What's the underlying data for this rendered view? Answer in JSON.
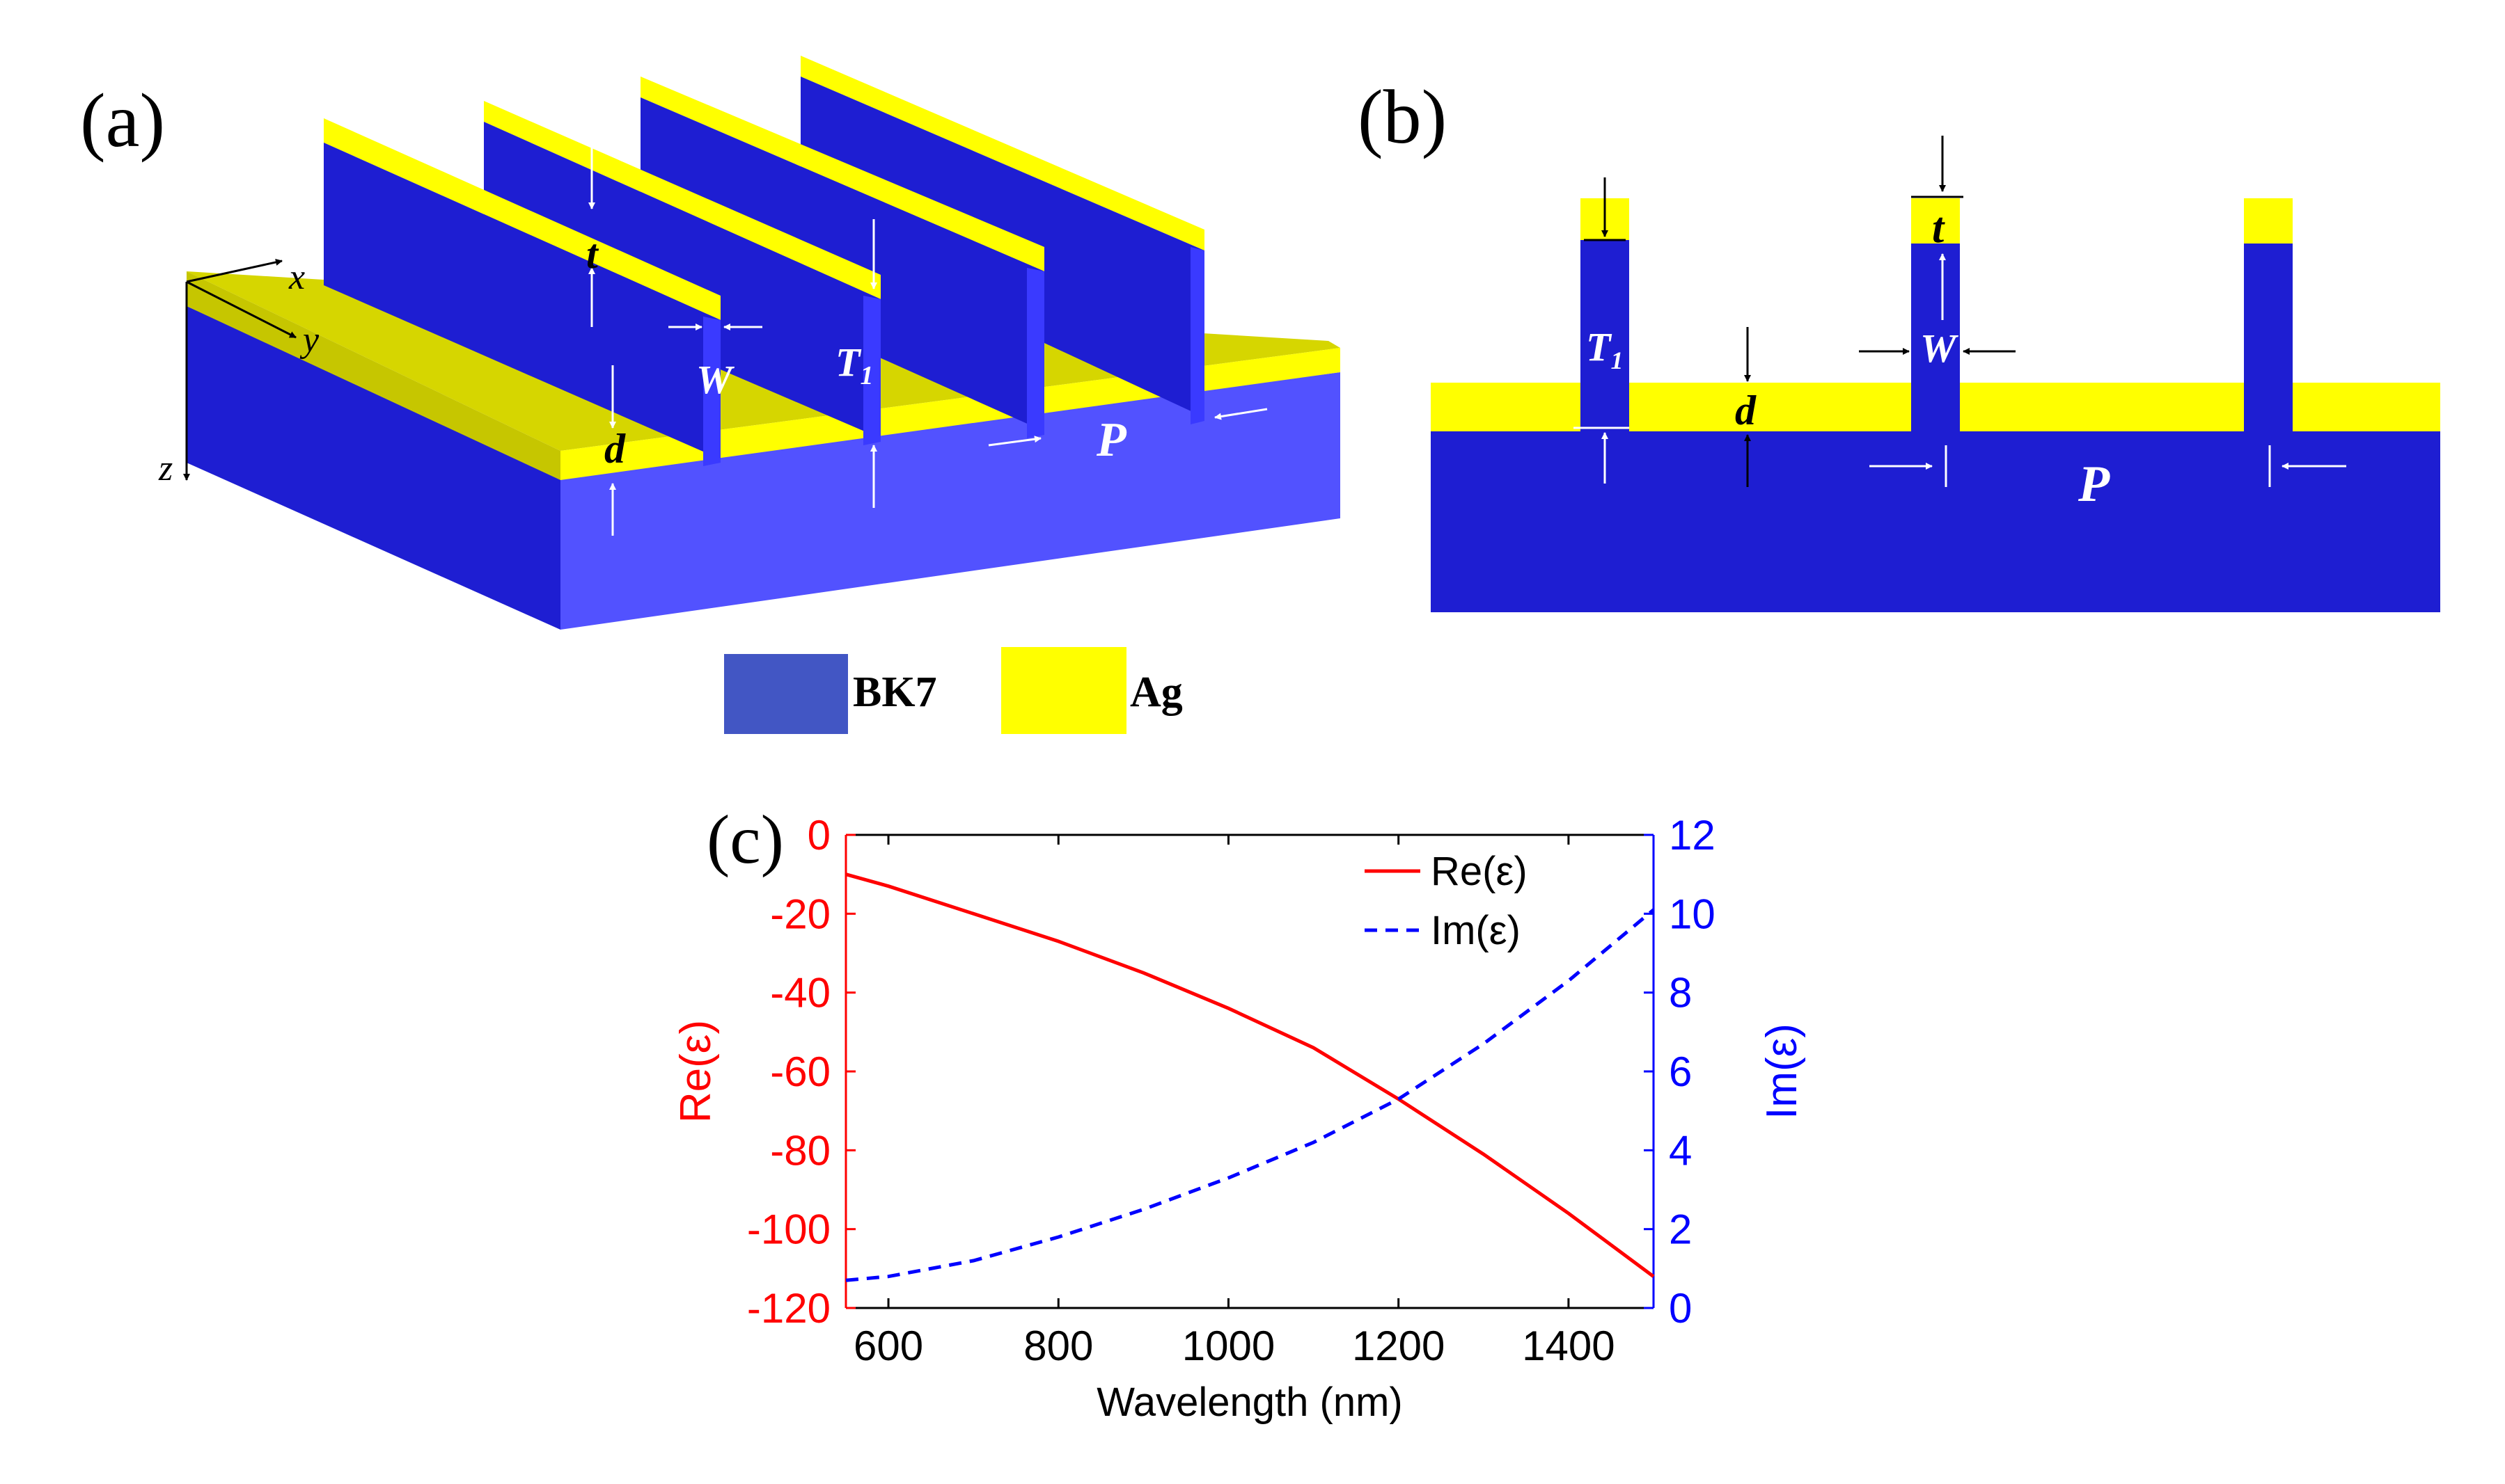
{
  "panels": {
    "a": {
      "label": "(a)"
    },
    "b": {
      "label": "(b)"
    },
    "c": {
      "label": "(c)"
    }
  },
  "symbols": {
    "t": "t",
    "T1": "T",
    "T1_sub": "1",
    "W": "W",
    "d": "d",
    "P": "P",
    "x": "x",
    "y": "y",
    "z": "z"
  },
  "legend": {
    "materials": [
      {
        "name": "BK7",
        "color": "#4256c4"
      },
      {
        "name": "Ag",
        "color": "#ffff00"
      }
    ]
  },
  "colors": {
    "substrate_top": "#5252ff",
    "substrate_side": "#1e1ed2",
    "ag_top": "#d6d600",
    "ag_front": "#ffff00",
    "red": "#ff0000",
    "blue": "#0000ff"
  },
  "chart_data": {
    "type": "line",
    "xlabel": "Wavelength (nm)",
    "ylabel_left": "Re(ε)",
    "ylabel_right": "Im(ε)",
    "xlim": [
      550,
      1500
    ],
    "ylim_left": [
      -120,
      0
    ],
    "ylim_right": [
      0,
      12
    ],
    "xticks": [
      600,
      800,
      1000,
      1200,
      1400
    ],
    "yticks_left": [
      0,
      -20,
      -40,
      -60,
      -80,
      -100,
      -120
    ],
    "yticks_right": [
      12,
      10,
      8,
      6,
      4,
      2,
      0
    ],
    "series": [
      {
        "name": "Re(ε)",
        "axis": "left",
        "style": "solid",
        "color": "#ff0000",
        "x": [
          550,
          600,
          700,
          800,
          900,
          1000,
          1100,
          1200,
          1300,
          1400,
          1500
        ],
        "y": [
          -10,
          -13,
          -20,
          -27,
          -35,
          -44,
          -54,
          -67,
          -81,
          -96,
          -112
        ]
      },
      {
        "name": "Im(ε)",
        "axis": "right",
        "style": "dashed",
        "color": "#0000ff",
        "x": [
          550,
          600,
          700,
          800,
          900,
          1000,
          1100,
          1200,
          1300,
          1400,
          1500
        ],
        "y": [
          0.7,
          0.8,
          1.2,
          1.8,
          2.5,
          3.3,
          4.2,
          5.3,
          6.7,
          8.3,
          10.1
        ]
      }
    ]
  }
}
